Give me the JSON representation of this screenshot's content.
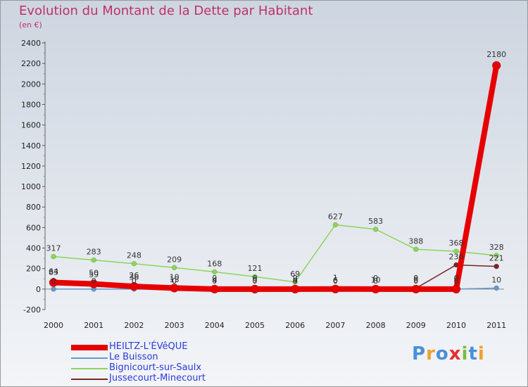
{
  "title": "Evolution du Montant de la Dette par Habitant",
  "subtitle": "(en €)",
  "logo": {
    "text": "Proxiti",
    "colors": [
      "#4a90d9",
      "#f0a030",
      "#4a90d9",
      "#e53030",
      "#7cbd3c",
      "#4a90d9",
      "#f0a030"
    ]
  },
  "chart_data": {
    "type": "line",
    "title": "Evolution du Montant de la Dette par Habitant",
    "ylabel": "(en €)",
    "xlabel": "",
    "x": [
      "2000",
      "2001",
      "2002",
      "2003",
      "2004",
      "2005",
      "2006",
      "2007",
      "2008",
      "2009",
      "2010",
      "2011"
    ],
    "ylim": [
      -200,
      2400
    ],
    "yticks": [
      "-200",
      "0",
      "200",
      "400",
      "600",
      "800",
      "1000",
      "1200",
      "1400",
      "1600",
      "1800",
      "2000",
      "2200",
      "2400"
    ],
    "grid": false,
    "legend_position": "bottom-left",
    "series": [
      {
        "name": "Bignicourt-sur-Saulx",
        "color": "#8cd45a",
        "values": [
          317,
          283,
          248,
          209,
          168,
          121,
          69,
          627,
          583,
          388,
          368,
          328
        ],
        "labels": [
          "317",
          "283",
          "248",
          "209",
          "168",
          "121",
          "69",
          "627",
          "583",
          "388",
          "368",
          "328"
        ]
      },
      {
        "name": "Le Buisson",
        "color": "#6699cc",
        "values": [
          0,
          0,
          0,
          0,
          0,
          0,
          0,
          0,
          0,
          0,
          0,
          10
        ],
        "labels": [
          "0",
          "0",
          "0",
          "0",
          "0",
          "0",
          "0",
          "0",
          "0",
          "0",
          "0",
          "10"
        ]
      },
      {
        "name": "Jussecourt-Minecourt",
        "color": "#7a2626",
        "values": [
          83,
          59,
          36,
          13,
          4,
          9,
          4,
          6,
          10,
          8,
          236,
          221
        ],
        "labels": [
          "83",
          "59",
          "36",
          "13",
          "4",
          "9",
          "4",
          "6",
          "10",
          "8",
          "236",
          "221"
        ]
      },
      {
        "name": "HEILTZ-L'ÉVêQUE",
        "color": "#e60000",
        "values": [
          64,
          50,
          26,
          10,
          0,
          0,
          0,
          1,
          0,
          0,
          0,
          2180
        ],
        "labels": [
          "64",
          "50",
          "26",
          "10",
          "0",
          "0",
          "0",
          "1",
          "0",
          "0",
          "0",
          "2180"
        ]
      }
    ]
  },
  "legend": [
    {
      "label": "HEILTZ-L'ÉVêQUE",
      "color": "#e60000",
      "thickness": 8
    },
    {
      "label": "Le Buisson",
      "color": "#6699cc",
      "thickness": 2
    },
    {
      "label": "Bignicourt-sur-Saulx",
      "color": "#8cd45a",
      "thickness": 2
    },
    {
      "label": "Jussecourt-Minecourt",
      "color": "#7a2626",
      "thickness": 2
    }
  ]
}
